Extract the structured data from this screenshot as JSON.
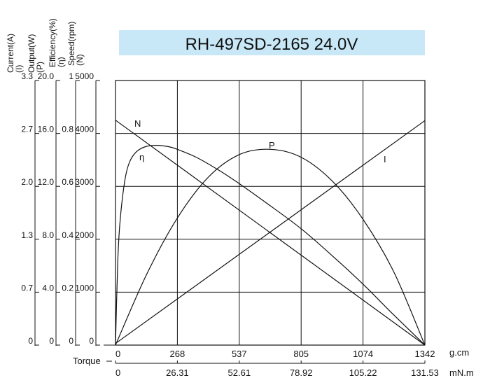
{
  "chart_data": {
    "type": "line",
    "title": "RH-497SD-2165  24.0V",
    "title_bg": "#c9e8f7",
    "x_torque_gcm": {
      "unit": "g.cm",
      "label": "Torque",
      "ticks": [
        "0",
        "268",
        "537",
        "805",
        "1074",
        "1342"
      ],
      "range": [
        0,
        1342
      ]
    },
    "x_torque_mNm": {
      "unit": "mN.m",
      "ticks": [
        "0",
        "26.31",
        "52.61",
        "78.92",
        "105.22",
        "131.53"
      ]
    },
    "y_axes": [
      {
        "id": "current",
        "label_lines": [
          "Current(A)",
          "(I)"
        ],
        "ticks": [
          "0",
          "0.7",
          "1.3",
          "2.0",
          "2.7",
          "3.3"
        ],
        "range": [
          0,
          3.3
        ]
      },
      {
        "id": "output",
        "label_lines": [
          "Output(W)",
          "(P)"
        ],
        "ticks": [
          "0",
          "4.0",
          "8.0",
          "12.0",
          "16.0",
          "20.0"
        ],
        "range": [
          0,
          20
        ]
      },
      {
        "id": "efficiency",
        "label_lines": [
          "Efficiency(%)",
          "(η)"
        ],
        "ticks": [
          "0",
          "0.2",
          "0.4",
          "0.6",
          "0.8",
          "1"
        ],
        "range": [
          0,
          1
        ]
      },
      {
        "id": "speed",
        "label_lines": [
          "Speed(rpm)",
          "(N)"
        ],
        "ticks": [
          "0",
          "1000",
          "2000",
          "3000",
          "4000",
          "5000"
        ],
        "range": [
          0,
          5000
        ]
      }
    ],
    "grid": true,
    "series": [
      {
        "name": "N",
        "axis": "speed",
        "x": [
          0,
          1342
        ],
        "y": [
          4250,
          0
        ]
      },
      {
        "name": "I",
        "axis": "current",
        "x": [
          0,
          1342
        ],
        "y": [
          0.02,
          2.8
        ]
      },
      {
        "name": "P",
        "axis": "output",
        "x": [
          0,
          134,
          268,
          403,
          537,
          671,
          805,
          940,
          1074,
          1208,
          1342
        ],
        "y": [
          0,
          5.3,
          9.6,
          12.7,
          14.4,
          14.8,
          14.2,
          12.4,
          9.5,
          5.5,
          0
        ]
      },
      {
        "name": "η",
        "axis": "efficiency",
        "x": [
          0,
          10,
          20,
          40,
          60,
          90,
          130,
          180,
          230,
          268,
          350,
          450,
          537,
          650,
          805,
          950,
          1074,
          1200,
          1342
        ],
        "y": [
          0,
          0.32,
          0.47,
          0.62,
          0.69,
          0.73,
          0.75,
          0.755,
          0.75,
          0.74,
          0.71,
          0.66,
          0.61,
          0.54,
          0.44,
          0.33,
          0.23,
          0.12,
          0
        ]
      }
    ]
  }
}
